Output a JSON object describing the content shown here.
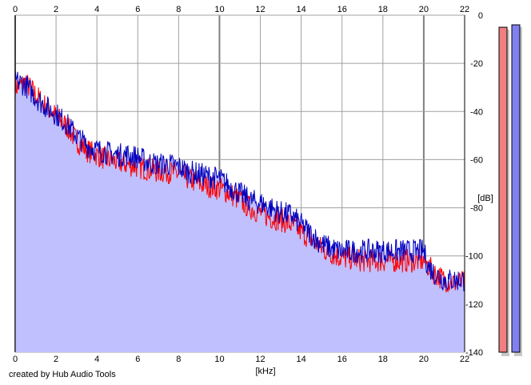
{
  "colors": {
    "background": "#ffffff",
    "plot_fill": "#c0c0ff",
    "grid": "#a0a0a0",
    "left_channel": "#ff0000",
    "right_channel": "#0000c0",
    "left_meter": "#f08080",
    "right_meter": "#8080f0",
    "meter_shadow": "#c8c8c8"
  },
  "chart_data": {
    "type": "line",
    "title": "",
    "xlabel": "[kHz]",
    "ylabel": "[dB]",
    "xlim": [
      0,
      22
    ],
    "ylim": [
      -140,
      0
    ],
    "x_ticks": [
      "0",
      "2",
      "4",
      "6",
      "8",
      "10",
      "12",
      "14",
      "16",
      "18",
      "20",
      "22"
    ],
    "y_ticks": [
      "0",
      "-20",
      "-40",
      "-60",
      "-80",
      "-100",
      "-120",
      "-140"
    ],
    "grid": true,
    "fill_under": true,
    "series": [
      {
        "color": "#ff0000",
        "x": [
          0,
          0.5,
          1,
          1.5,
          2,
          2.5,
          3,
          3.5,
          4,
          4.5,
          5,
          5.5,
          6,
          6.5,
          7,
          7.5,
          8,
          8.5,
          9,
          9.5,
          10,
          10.5,
          11,
          11.5,
          12,
          12.5,
          13,
          13.5,
          14,
          14.5,
          15,
          15.5,
          16,
          16.5,
          17,
          17.5,
          18,
          18.5,
          19,
          19.5,
          20,
          20.2,
          20.5,
          21,
          21.5,
          22
        ],
        "values": [
          -30,
          -28,
          -33,
          -38,
          -42,
          -46,
          -52,
          -56,
          -58,
          -60,
          -61,
          -62,
          -63,
          -64,
          -65,
          -65,
          -66,
          -68,
          -70,
          -71,
          -72,
          -74,
          -77,
          -80,
          -82,
          -84,
          -85,
          -87,
          -90,
          -93,
          -97,
          -99,
          -101,
          -101,
          -102,
          -102,
          -102,
          -102,
          -102,
          -102,
          -102,
          -104,
          -107,
          -110,
          -111,
          -111
        ]
      },
      {
        "color": "#0000c0",
        "x": [
          0,
          0.5,
          1,
          1.5,
          2,
          2.5,
          3,
          3.5,
          4,
          4.5,
          5,
          5.5,
          6,
          6.5,
          7,
          7.5,
          8,
          8.5,
          9,
          9.5,
          10,
          10.5,
          11,
          11.5,
          12,
          12.5,
          13,
          13.5,
          14,
          14.5,
          15,
          15.5,
          16,
          16.5,
          17,
          17.5,
          18,
          18.5,
          19,
          19.5,
          20,
          20.2,
          20.5,
          21,
          21.5,
          22
        ],
        "values": [
          -27,
          -29,
          -34,
          -38,
          -41,
          -45,
          -50,
          -54,
          -56,
          -57,
          -58,
          -58,
          -59,
          -61,
          -62,
          -62,
          -63,
          -65,
          -66,
          -67,
          -68,
          -71,
          -74,
          -77,
          -78,
          -80,
          -82,
          -83,
          -87,
          -91,
          -95,
          -97,
          -98,
          -98,
          -98,
          -98,
          -98,
          -98,
          -98,
          -98,
          -98,
          -104,
          -107,
          -110,
          -110,
          -110
        ]
      }
    ],
    "meters": [
      {
        "channel": "left",
        "level_db": -5,
        "color": "#f08080"
      },
      {
        "channel": "right",
        "level_db": -4,
        "color": "#8080f0"
      }
    ]
  },
  "footer": {
    "credit": "created by Hub Audio Tools"
  }
}
